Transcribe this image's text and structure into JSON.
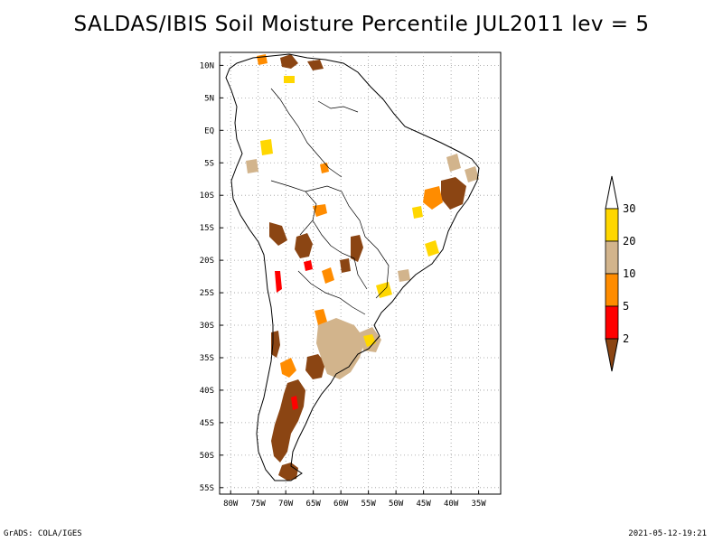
{
  "title": "SALDAS/IBIS Soil Moisture Percentile JUL2011 lev = 5",
  "footer": {
    "left": "GrADS: COLA/IGES",
    "right": "2021-05-12-19:21"
  },
  "map": {
    "region": "South America",
    "lon_range": [
      -82,
      -31
    ],
    "lat_range": [
      12,
      -56
    ],
    "lon_ticks": [
      "80W",
      "75W",
      "70W",
      "65W",
      "60W",
      "55W",
      "50W",
      "45W",
      "40W",
      "35W"
    ],
    "lat_ticks": [
      "10N",
      "5N",
      "EQ",
      "5S",
      "10S",
      "15S",
      "20S",
      "25S",
      "30S",
      "35S",
      "40S",
      "45S",
      "50S",
      "55S"
    ],
    "grid": "dotted"
  },
  "colorbar": {
    "levels": [
      "2",
      "5",
      "10",
      "20",
      "30"
    ],
    "colors": [
      "#8b4513",
      "#ff0000",
      "#ff8c00",
      "#d2b48c",
      "#ffd700",
      "#ffffff"
    ]
  },
  "colors": {
    "very_dry": "#8b4513",
    "dry": "#ff0000",
    "moderate": "#ff8c00",
    "slight": "#d2b48c",
    "near_normal": "#ffd700"
  }
}
